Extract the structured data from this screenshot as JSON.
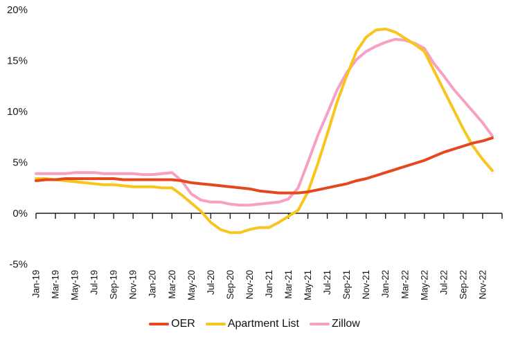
{
  "chart_data": {
    "type": "line",
    "title": "",
    "xlabel": "",
    "ylabel": "",
    "grid": "off",
    "background": "#ffffff",
    "axis_color": "#1a1a1a",
    "text_color": "#1a1a1a",
    "legend_position": "bottom-center",
    "ylim": [
      -5,
      20
    ],
    "y_ticks": {
      "labels": [
        "20%",
        "15%",
        "10%",
        "5%",
        "0%",
        "-5%"
      ],
      "values": [
        20,
        15,
        10,
        5,
        0,
        -5
      ]
    },
    "x_tick_labels": [
      "Jan-19",
      "Mar-19",
      "May-19",
      "Jul-19",
      "Sep-19",
      "Nov-19",
      "Jan-20",
      "Mar-20",
      "May-20",
      "Jul-20",
      "Sep-20",
      "Nov-20",
      "Jan-21",
      "Mar-21",
      "May-21",
      "Jul-21",
      "Sep-21",
      "Nov-21",
      "Jan-22",
      "Mar-22",
      "May-22",
      "Jul-22",
      "Sep-22",
      "Nov-22"
    ],
    "months": [
      "Jan-19",
      "Feb-19",
      "Mar-19",
      "Apr-19",
      "May-19",
      "Jun-19",
      "Jul-19",
      "Aug-19",
      "Sep-19",
      "Oct-19",
      "Nov-19",
      "Dec-19",
      "Jan-20",
      "Feb-20",
      "Mar-20",
      "Apr-20",
      "May-20",
      "Jun-20",
      "Jul-20",
      "Aug-20",
      "Sep-20",
      "Oct-20",
      "Nov-20",
      "Dec-20",
      "Jan-21",
      "Feb-21",
      "Mar-21",
      "Apr-21",
      "May-21",
      "Jun-21",
      "Jul-21",
      "Aug-21",
      "Sep-21",
      "Oct-21",
      "Nov-21",
      "Dec-21",
      "Jan-22",
      "Feb-22",
      "Mar-22",
      "Apr-22",
      "May-22",
      "Jun-22",
      "Jul-22",
      "Aug-22",
      "Sep-22",
      "Oct-22",
      "Nov-22",
      "Dec-22"
    ],
    "value_unit": "% year-over-year",
    "series": [
      {
        "name": "OER",
        "color": "#E5481F",
        "values": [
          3.2,
          3.3,
          3.3,
          3.4,
          3.4,
          3.4,
          3.4,
          3.4,
          3.4,
          3.3,
          3.3,
          3.3,
          3.3,
          3.3,
          3.3,
          3.2,
          3.0,
          2.9,
          2.8,
          2.7,
          2.6,
          2.5,
          2.4,
          2.2,
          2.1,
          2.0,
          2.0,
          2.0,
          2.1,
          2.3,
          2.5,
          2.7,
          2.9,
          3.2,
          3.4,
          3.7,
          4.0,
          4.3,
          4.6,
          4.9,
          5.2,
          5.6,
          6.0,
          6.3,
          6.6,
          6.9,
          7.1,
          7.4
        ]
      },
      {
        "name": "Apartment List",
        "color": "#F7C51E",
        "values": [
          3.4,
          3.4,
          3.3,
          3.2,
          3.1,
          3.0,
          2.9,
          2.8,
          2.8,
          2.7,
          2.6,
          2.6,
          2.6,
          2.5,
          2.5,
          1.8,
          1.0,
          0.2,
          -0.9,
          -1.6,
          -1.9,
          -1.9,
          -1.6,
          -1.4,
          -1.4,
          -0.9,
          -0.3,
          0.3,
          2.1,
          4.8,
          7.8,
          10.9,
          13.5,
          15.9,
          17.3,
          18.0,
          18.1,
          17.8,
          17.2,
          16.6,
          15.9,
          14.0,
          12.1,
          10.2,
          8.3,
          6.6,
          5.3,
          4.2
        ]
      },
      {
        "name": "Zillow",
        "color": "#F79FC4",
        "values": [
          3.9,
          3.9,
          3.9,
          3.9,
          4.0,
          4.0,
          4.0,
          3.9,
          3.9,
          3.9,
          3.9,
          3.8,
          3.8,
          3.9,
          4.0,
          3.2,
          1.9,
          1.3,
          1.1,
          1.1,
          0.9,
          0.8,
          0.8,
          0.9,
          1.0,
          1.1,
          1.4,
          2.5,
          5.0,
          7.6,
          9.8,
          12.1,
          13.8,
          15.1,
          15.9,
          16.4,
          16.8,
          17.1,
          17.0,
          16.7,
          16.2,
          14.7,
          13.5,
          12.2,
          11.1,
          10.0,
          8.9,
          7.6
        ]
      }
    ]
  }
}
